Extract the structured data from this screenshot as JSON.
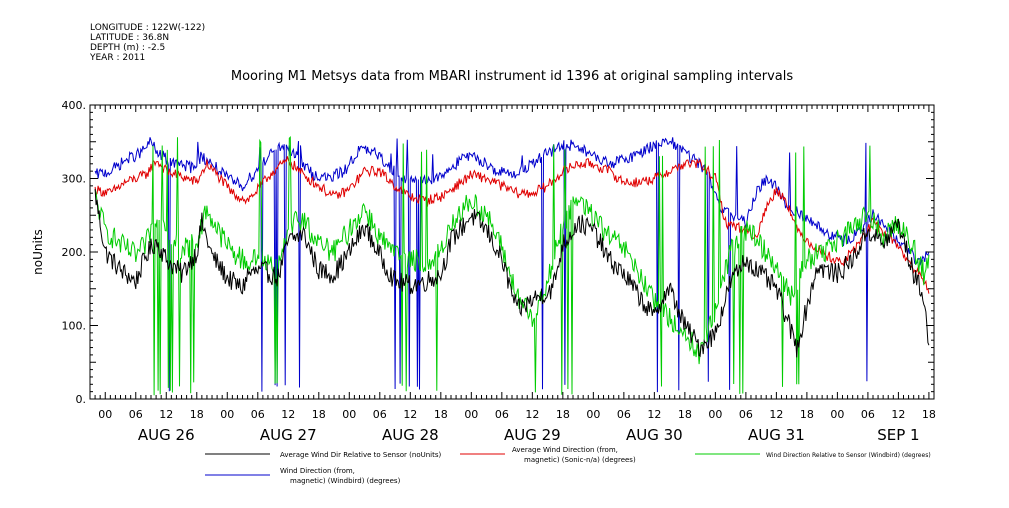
{
  "header": {
    "meta_lines": [
      "LONGITUDE : 122W(-122)",
      "LATITUDE : 36.8N",
      "DEPTH (m) : -2.5",
      "YEAR : 2011"
    ]
  },
  "chart_data": {
    "type": "line",
    "title": "Mooring M1 Metsys data from MBARI instrument id 1396 at original sampling intervals",
    "ylabel": "noUnits",
    "xlabel": "",
    "ylim": [
      0,
      400
    ],
    "yticks": [
      0,
      100,
      200,
      300,
      400
    ],
    "ytick_labels": [
      "0.",
      "100.",
      "200.",
      "300.",
      "400."
    ],
    "xlim_hours": [
      -3,
      163
    ],
    "hour_tick_labels": [
      "00",
      "06",
      "12",
      "18",
      "00",
      "06",
      "12",
      "18",
      "00",
      "06",
      "12",
      "18",
      "00",
      "06",
      "12",
      "18",
      "00",
      "06",
      "12",
      "18",
      "00",
      "06",
      "12",
      "18",
      "00",
      "06",
      "12",
      "18"
    ],
    "day_labels": [
      "AUG 26",
      "AUG 27",
      "AUG 28",
      "AUG 29",
      "AUG 30",
      "AUG 31",
      "SEP  1"
    ],
    "grid": false,
    "legend_placement": "bottom",
    "series": [
      {
        "name": "Average Wind Dir Relative to Sensor (noUnits)",
        "color": "#000000",
        "anchors": [
          [
            -2,
            280
          ],
          [
            0,
            200
          ],
          [
            3,
            175
          ],
          [
            6,
            160
          ],
          [
            8,
            195
          ],
          [
            10,
            215
          ],
          [
            12,
            190
          ],
          [
            15,
            170
          ],
          [
            18,
            200
          ],
          [
            19,
            240
          ],
          [
            21,
            195
          ],
          [
            24,
            165
          ],
          [
            27,
            150
          ],
          [
            28,
            170
          ],
          [
            31,
            175
          ],
          [
            34,
            165
          ],
          [
            36,
            215
          ],
          [
            39,
            225
          ],
          [
            42,
            175
          ],
          [
            45,
            170
          ],
          [
            48,
            200
          ],
          [
            51,
            235
          ],
          [
            54,
            195
          ],
          [
            57,
            160
          ],
          [
            60,
            155
          ],
          [
            63,
            160
          ],
          [
            66,
            170
          ],
          [
            68,
            215
          ],
          [
            72,
            250
          ],
          [
            75,
            230
          ],
          [
            78,
            190
          ],
          [
            81,
            120
          ],
          [
            84,
            135
          ],
          [
            88,
            150
          ],
          [
            90,
            210
          ],
          [
            93,
            240
          ],
          [
            96,
            230
          ],
          [
            99,
            190
          ],
          [
            102,
            170
          ],
          [
            105,
            140
          ],
          [
            108,
            110
          ],
          [
            109,
            130
          ],
          [
            111,
            150
          ],
          [
            114,
            100
          ],
          [
            117,
            70
          ],
          [
            120,
            90
          ],
          [
            123,
            160
          ],
          [
            126,
            190
          ],
          [
            129,
            170
          ],
          [
            132,
            150
          ],
          [
            134,
            110
          ],
          [
            136,
            70
          ],
          [
            140,
            180
          ],
          [
            144,
            170
          ],
          [
            147,
            190
          ],
          [
            150,
            230
          ],
          [
            153,
            210
          ],
          [
            156,
            240
          ],
          [
            159,
            170
          ],
          [
            161,
            140
          ],
          [
            162,
            70
          ]
        ]
      },
      {
        "name": "Average Wind Direction (from, magnetic) (Sonic-n/a) (degrees)",
        "color": "#e00000",
        "anchors": [
          [
            -2,
            285
          ],
          [
            1,
            280
          ],
          [
            4,
            295
          ],
          [
            8,
            305
          ],
          [
            10,
            325
          ],
          [
            12,
            310
          ],
          [
            16,
            300
          ],
          [
            18,
            295
          ],
          [
            20,
            320
          ],
          [
            22,
            305
          ],
          [
            25,
            280
          ],
          [
            28,
            270
          ],
          [
            30,
            285
          ],
          [
            33,
            310
          ],
          [
            36,
            325
          ],
          [
            39,
            305
          ],
          [
            42,
            290
          ],
          [
            45,
            275
          ],
          [
            48,
            285
          ],
          [
            51,
            310
          ],
          [
            54,
            310
          ],
          [
            57,
            290
          ],
          [
            60,
            275
          ],
          [
            63,
            270
          ],
          [
            66,
            275
          ],
          [
            69,
            290
          ],
          [
            72,
            305
          ],
          [
            75,
            300
          ],
          [
            78,
            290
          ],
          [
            81,
            280
          ],
          [
            84,
            280
          ],
          [
            87,
            290
          ],
          [
            90,
            310
          ],
          [
            93,
            320
          ],
          [
            96,
            320
          ],
          [
            99,
            310
          ],
          [
            102,
            295
          ],
          [
            105,
            295
          ],
          [
            108,
            300
          ],
          [
            111,
            310
          ],
          [
            114,
            320
          ],
          [
            117,
            320
          ],
          [
            120,
            300
          ],
          [
            122,
            240
          ],
          [
            126,
            230
          ],
          [
            128,
            220
          ],
          [
            130,
            260
          ],
          [
            132,
            285
          ],
          [
            134,
            270
          ],
          [
            136,
            230
          ],
          [
            139,
            210
          ],
          [
            142,
            195
          ],
          [
            145,
            185
          ],
          [
            148,
            210
          ],
          [
            151,
            240
          ],
          [
            154,
            220
          ],
          [
            156,
            210
          ],
          [
            158,
            185
          ],
          [
            160,
            170
          ],
          [
            162,
            150
          ]
        ]
      },
      {
        "name": "Wind Direction Relative to Sensor (Windbird) (degrees)",
        "color": "#00cc00",
        "anchors": [
          [
            -2,
            275
          ],
          [
            0,
            230
          ],
          [
            3,
            210
          ],
          [
            6,
            195
          ],
          [
            8,
            210
          ],
          [
            10,
            250
          ],
          [
            12,
            225
          ],
          [
            15,
            200
          ],
          [
            18,
            215
          ],
          [
            20,
            260
          ],
          [
            22,
            230
          ],
          [
            25,
            200
          ],
          [
            28,
            185
          ],
          [
            31,
            195
          ],
          [
            34,
            180
          ],
          [
            36,
            240
          ],
          [
            39,
            245
          ],
          [
            42,
            210
          ],
          [
            45,
            200
          ],
          [
            48,
            230
          ],
          [
            51,
            260
          ],
          [
            54,
            220
          ],
          [
            57,
            195
          ],
          [
            60,
            190
          ],
          [
            63,
            185
          ],
          [
            66,
            200
          ],
          [
            68,
            240
          ],
          [
            72,
            270
          ],
          [
            75,
            250
          ],
          [
            78,
            205
          ],
          [
            81,
            140
          ],
          [
            84,
            110
          ],
          [
            87,
            160
          ],
          [
            90,
            240
          ],
          [
            93,
            270
          ],
          [
            96,
            250
          ],
          [
            99,
            220
          ],
          [
            102,
            205
          ],
          [
            105,
            170
          ],
          [
            108,
            130
          ],
          [
            111,
            110
          ],
          [
            114,
            90
          ],
          [
            117,
            60
          ],
          [
            120,
            120
          ],
          [
            123,
            200
          ],
          [
            126,
            230
          ],
          [
            129,
            210
          ],
          [
            132,
            180
          ],
          [
            135,
            140
          ],
          [
            138,
            190
          ],
          [
            141,
            200
          ],
          [
            144,
            215
          ],
          [
            147,
            230
          ],
          [
            150,
            250
          ],
          [
            153,
            220
          ],
          [
            156,
            240
          ],
          [
            159,
            205
          ],
          [
            161,
            170
          ],
          [
            162,
            190
          ]
        ]
      },
      {
        "name": "Wind Direction (from, magnetic) (Windbird) (degrees)",
        "color": "#0000cc",
        "anchors": [
          [
            -2,
            305
          ],
          [
            1,
            310
          ],
          [
            4,
            325
          ],
          [
            7,
            335
          ],
          [
            9,
            350
          ],
          [
            11,
            330
          ],
          [
            14,
            320
          ],
          [
            17,
            315
          ],
          [
            19,
            330
          ],
          [
            21,
            320
          ],
          [
            24,
            300
          ],
          [
            27,
            290
          ],
          [
            29,
            305
          ],
          [
            32,
            330
          ],
          [
            35,
            345
          ],
          [
            38,
            325
          ],
          [
            41,
            305
          ],
          [
            44,
            300
          ],
          [
            47,
            310
          ],
          [
            50,
            340
          ],
          [
            53,
            335
          ],
          [
            56,
            315
          ],
          [
            59,
            300
          ],
          [
            62,
            295
          ],
          [
            65,
            300
          ],
          [
            68,
            315
          ],
          [
            71,
            330
          ],
          [
            74,
            325
          ],
          [
            77,
            310
          ],
          [
            80,
            305
          ],
          [
            84,
            320
          ],
          [
            87,
            335
          ],
          [
            90,
            345
          ],
          [
            93,
            345
          ],
          [
            96,
            330
          ],
          [
            99,
            320
          ],
          [
            102,
            325
          ],
          [
            105,
            335
          ],
          [
            108,
            345
          ],
          [
            111,
            350
          ],
          [
            114,
            335
          ],
          [
            117,
            320
          ],
          [
            119,
            300
          ],
          [
            121,
            255
          ],
          [
            124,
            250
          ],
          [
            126,
            240
          ],
          [
            128,
            280
          ],
          [
            130,
            300
          ],
          [
            132,
            290
          ],
          [
            134,
            260
          ],
          [
            136,
            255
          ],
          [
            139,
            240
          ],
          [
            142,
            225
          ],
          [
            145,
            215
          ],
          [
            148,
            225
          ],
          [
            151,
            250
          ],
          [
            154,
            230
          ],
          [
            156,
            215
          ],
          [
            158,
            200
          ],
          [
            160,
            185
          ],
          [
            162,
            200
          ]
        ]
      }
    ]
  }
}
